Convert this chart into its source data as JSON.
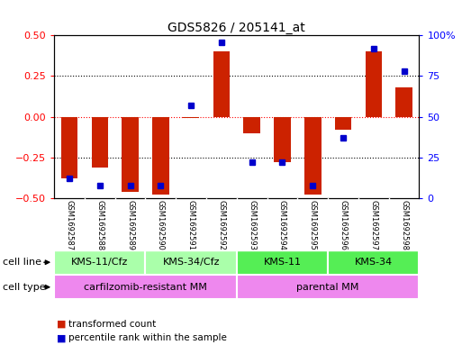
{
  "title": "GDS5826 / 205141_at",
  "samples": [
    "GSM1692587",
    "GSM1692588",
    "GSM1692589",
    "GSM1692590",
    "GSM1692591",
    "GSM1692592",
    "GSM1692593",
    "GSM1692594",
    "GSM1692595",
    "GSM1692596",
    "GSM1692597",
    "GSM1692598"
  ],
  "transformed_count": [
    -0.38,
    -0.31,
    -0.46,
    -0.48,
    -0.01,
    0.4,
    -0.1,
    -0.28,
    -0.48,
    -0.08,
    0.4,
    0.18
  ],
  "percentile_rank": [
    12,
    8,
    8,
    8,
    57,
    96,
    22,
    22,
    8,
    37,
    92,
    78
  ],
  "cell_line_groups": [
    {
      "label": "KMS-11/Cfz",
      "start": 0,
      "end": 2,
      "color": "#aaffaa"
    },
    {
      "label": "KMS-34/Cfz",
      "start": 3,
      "end": 5,
      "color": "#aaffaa"
    },
    {
      "label": "KMS-11",
      "start": 6,
      "end": 8,
      "color": "#55ee55"
    },
    {
      "label": "KMS-34",
      "start": 9,
      "end": 11,
      "color": "#55ee55"
    }
  ],
  "cell_type_groups": [
    {
      "label": "carfilzomib-resistant MM",
      "start": 0,
      "end": 5,
      "color": "#ee88ee"
    },
    {
      "label": "parental MM",
      "start": 6,
      "end": 11,
      "color": "#ee88ee"
    }
  ],
  "bar_color": "#cc2200",
  "dot_color": "#0000cc",
  "ylim_left": [
    -0.5,
    0.5
  ],
  "ylim_right": [
    0,
    100
  ],
  "yticks_left": [
    -0.5,
    -0.25,
    0,
    0.25,
    0.5
  ],
  "yticks_right": [
    0,
    25,
    50,
    75,
    100
  ],
  "sample_bg_color": "#cccccc",
  "plot_bg_color": "#ffffff",
  "background_color": "#ffffff"
}
